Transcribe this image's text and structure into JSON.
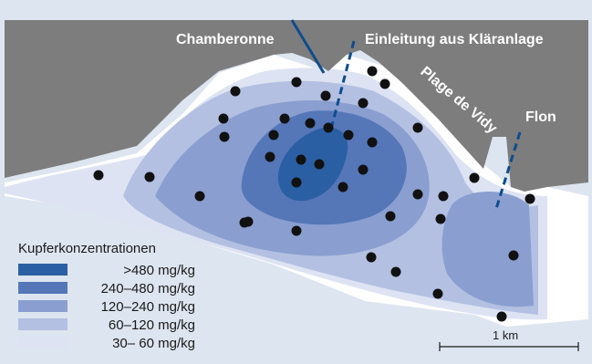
{
  "labels": {
    "chamberonne": "Chamberonne",
    "einleitung": "Einleitung aus Kläranlage",
    "plage": "Plage de Vidy",
    "flon": "Flon"
  },
  "legend": {
    "title": "Kupferkonzentrationen",
    "classes": [
      {
        "label": ">480 mg/kg",
        "color": "#2b5fa3"
      },
      {
        "label": "240–480 mg/kg",
        "color": "#5577b8"
      },
      {
        "label": "120–240 mg/kg",
        "color": "#8a9fd0"
      },
      {
        "label": "60–120 mg/kg",
        "color": "#b3c0e2"
      },
      {
        "label": "30–  60 mg/kg",
        "color": "#dde3f2"
      }
    ]
  },
  "scale_bar": {
    "label": "1 km"
  },
  "colors": {
    "land": "#7d7d7d",
    "background": "#dde5f0",
    "river": "#0e4c8e",
    "sample_point": "#111111"
  },
  "sample_point_count": 44
}
